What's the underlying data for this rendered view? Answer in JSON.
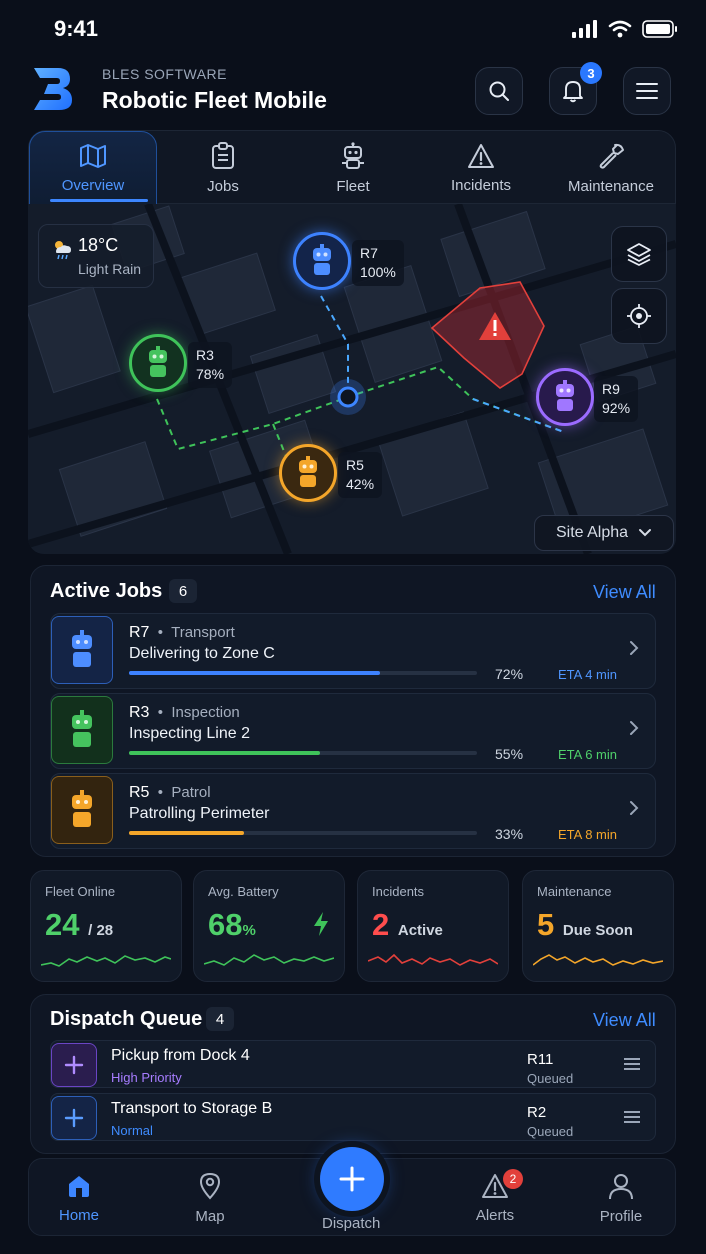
{
  "status_bar": {
    "time": "9:41"
  },
  "header": {
    "brand": "BLES SOFTWARE",
    "title": "Robotic Fleet Mobile",
    "notification_count": "3"
  },
  "tabs": [
    {
      "label": "Overview",
      "icon": "map-icon",
      "active": true
    },
    {
      "label": "Jobs",
      "icon": "clipboard-icon"
    },
    {
      "label": "Fleet",
      "icon": "robot-icon"
    },
    {
      "label": "Incidents",
      "icon": "warning-icon"
    },
    {
      "label": "Maintenance",
      "icon": "wrench-icon"
    }
  ],
  "map": {
    "weather": {
      "temp": "18°C",
      "condition": "Light Rain"
    },
    "site": "Site Alpha",
    "robots": [
      {
        "id": "R7",
        "battery": "100%",
        "color": "#3d82ff"
      },
      {
        "id": "R3",
        "battery": "78%",
        "color": "#3fc35a"
      },
      {
        "id": "R5",
        "battery": "42%",
        "color": "#f4a62a"
      },
      {
        "id": "R9",
        "battery": "92%",
        "color": "#9b6bff"
      }
    ]
  },
  "active_jobs": {
    "title": "Active Jobs",
    "count": "6",
    "view_all": "View All",
    "items": [
      {
        "robot": "R7",
        "type": "Transport",
        "task": "Delivering to Zone C",
        "progress": 0.72,
        "percent": "72%",
        "eta": "ETA 4 min",
        "color": "#3d82ff"
      },
      {
        "robot": "R3",
        "type": "Inspection",
        "task": "Inspecting Line 2",
        "progress": 0.55,
        "percent": "55%",
        "eta": "ETA 6 min",
        "color": "#3fc35a"
      },
      {
        "robot": "R5",
        "type": "Patrol",
        "task": "Patrolling Perimeter",
        "progress": 0.33,
        "percent": "33%",
        "eta": "ETA 8 min",
        "color": "#f4a62a"
      }
    ]
  },
  "stats": [
    {
      "label": "Fleet Online",
      "value": "24",
      "sub": "/ 28",
      "color": "#4fd06a"
    },
    {
      "label": "Avg. Battery",
      "value": "68",
      "sub": "%",
      "color": "#4fd06a"
    },
    {
      "label": "Incidents",
      "value": "2",
      "sub": "Active",
      "color": "#ff4d4d"
    },
    {
      "label": "Maintenance",
      "value": "5",
      "sub": "Due Soon",
      "color": "#f4a62a"
    }
  ],
  "dispatch_queue": {
    "title": "Dispatch Queue",
    "count": "4",
    "view_all": "View All",
    "items": [
      {
        "title": "Pickup from Dock 4",
        "priority": "High Priority",
        "robot": "R11",
        "state": "Queued",
        "color": "#9b6bff"
      },
      {
        "title": "Transport to Storage B",
        "priority": "Normal",
        "robot": "R2",
        "state": "Queued",
        "color": "#3d82ff"
      }
    ]
  },
  "bottom_nav": {
    "home": "Home",
    "map": "Map",
    "dispatch": "Dispatch",
    "alerts": "Alerts",
    "alerts_count": "2",
    "profile": "Profile"
  }
}
